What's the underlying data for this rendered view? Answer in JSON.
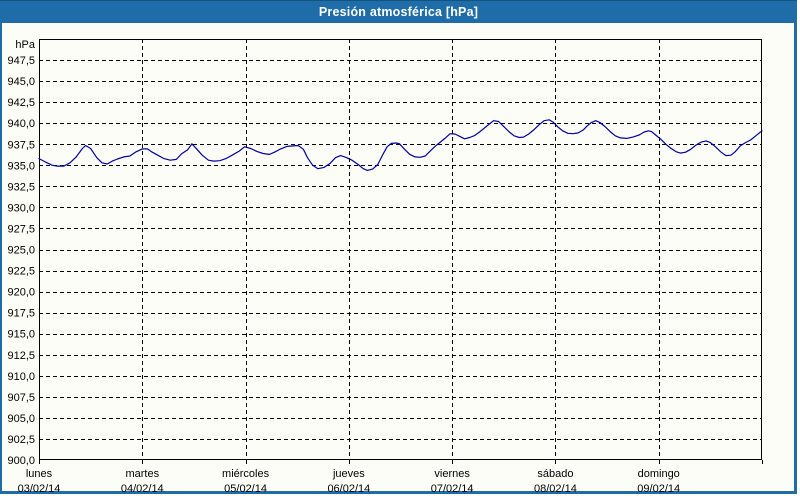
{
  "window": {
    "title": "Presión atmosférica [hPa]"
  },
  "colors": {
    "titlebar_bg": "#1E6CA8",
    "titlebar_text": "#FFFFFF",
    "frame": "#1E6CA8",
    "content_bg": "#FDFDF8",
    "grid": "#000000",
    "axis_text": "#000000",
    "line": "#0000A2"
  },
  "chart_data": {
    "type": "line",
    "title": "Presión atmosférica [hPa]",
    "unit_label": "hPa",
    "grid": "on",
    "legend": "none",
    "y_axis": {
      "min": 900.0,
      "max": 950.0,
      "tick_step": 2.5,
      "tick_labels": [
        "947,5",
        "945,0",
        "942,5",
        "940,0",
        "937,5",
        "935,0",
        "932,5",
        "930,0",
        "927,5",
        "925,0",
        "922,5",
        "920,0",
        "917,5",
        "915,0",
        "912,5",
        "910,0",
        "907,5",
        "905,0",
        "902,5",
        "900,0"
      ]
    },
    "x_axis": {
      "range_days": 7,
      "days": [
        {
          "name": "lunes",
          "date": "03/02/14"
        },
        {
          "name": "martes",
          "date": "04/02/14"
        },
        {
          "name": "miércoles",
          "date": "05/02/14"
        },
        {
          "name": "jueves",
          "date": "06/02/14"
        },
        {
          "name": "viernes",
          "date": "07/02/14"
        },
        {
          "name": "sábado",
          "date": "08/02/14"
        },
        {
          "name": "domingo",
          "date": "09/02/14"
        }
      ]
    },
    "series": [
      {
        "name": "Presión atmosférica",
        "color": "#0000A2",
        "points": [
          [
            0.0,
            935.8
          ],
          [
            0.06,
            935.4
          ],
          [
            0.13,
            935.0
          ],
          [
            0.18,
            934.9
          ],
          [
            0.24,
            934.9
          ],
          [
            0.3,
            935.3
          ],
          [
            0.36,
            936.0
          ],
          [
            0.42,
            937.0
          ],
          [
            0.45,
            937.35
          ],
          [
            0.5,
            937.0
          ],
          [
            0.56,
            935.9
          ],
          [
            0.61,
            935.3
          ],
          [
            0.66,
            935.15
          ],
          [
            0.71,
            935.5
          ],
          [
            0.76,
            935.75
          ],
          [
            0.82,
            936.0
          ],
          [
            0.88,
            936.1
          ],
          [
            0.94,
            936.6
          ],
          [
            1.0,
            936.95
          ],
          [
            1.05,
            936.95
          ],
          [
            1.09,
            936.6
          ],
          [
            1.15,
            936.2
          ],
          [
            1.21,
            935.8
          ],
          [
            1.27,
            935.6
          ],
          [
            1.33,
            935.7
          ],
          [
            1.38,
            936.35
          ],
          [
            1.44,
            936.85
          ],
          [
            1.48,
            937.55
          ],
          [
            1.53,
            936.9
          ],
          [
            1.58,
            936.2
          ],
          [
            1.64,
            935.6
          ],
          [
            1.69,
            935.5
          ],
          [
            1.75,
            935.55
          ],
          [
            1.81,
            935.8
          ],
          [
            1.87,
            936.2
          ],
          [
            1.94,
            936.7
          ],
          [
            1.99,
            937.2
          ],
          [
            2.05,
            937.0
          ],
          [
            2.11,
            936.65
          ],
          [
            2.17,
            936.4
          ],
          [
            2.23,
            936.3
          ],
          [
            2.28,
            936.55
          ],
          [
            2.34,
            936.95
          ],
          [
            2.4,
            937.25
          ],
          [
            2.46,
            937.3
          ],
          [
            2.51,
            937.35
          ],
          [
            2.56,
            936.9
          ],
          [
            2.6,
            935.9
          ],
          [
            2.65,
            935.0
          ],
          [
            2.7,
            934.6
          ],
          [
            2.76,
            934.75
          ],
          [
            2.82,
            935.25
          ],
          [
            2.87,
            935.9
          ],
          [
            2.92,
            936.15
          ],
          [
            2.97,
            935.95
          ],
          [
            3.03,
            935.6
          ],
          [
            3.09,
            935.1
          ],
          [
            3.14,
            934.6
          ],
          [
            3.18,
            934.4
          ],
          [
            3.23,
            934.55
          ],
          [
            3.28,
            935.1
          ],
          [
            3.33,
            936.3
          ],
          [
            3.37,
            937.2
          ],
          [
            3.41,
            937.6
          ],
          [
            3.46,
            937.65
          ],
          [
            3.49,
            937.55
          ],
          [
            3.54,
            936.9
          ],
          [
            3.59,
            936.3
          ],
          [
            3.64,
            936.0
          ],
          [
            3.69,
            935.95
          ],
          [
            3.74,
            936.1
          ],
          [
            3.78,
            936.6
          ],
          [
            3.83,
            937.2
          ],
          [
            3.88,
            937.7
          ],
          [
            3.93,
            938.2
          ],
          [
            3.98,
            938.75
          ],
          [
            4.03,
            938.7
          ],
          [
            4.08,
            938.4
          ],
          [
            4.12,
            938.15
          ],
          [
            4.17,
            938.3
          ],
          [
            4.22,
            938.55
          ],
          [
            4.27,
            939.0
          ],
          [
            4.32,
            939.5
          ],
          [
            4.37,
            940.0
          ],
          [
            4.4,
            940.3
          ],
          [
            4.45,
            940.2
          ],
          [
            4.5,
            939.6
          ],
          [
            4.55,
            939.0
          ],
          [
            4.6,
            938.5
          ],
          [
            4.65,
            938.3
          ],
          [
            4.69,
            938.35
          ],
          [
            4.74,
            938.7
          ],
          [
            4.79,
            939.2
          ],
          [
            4.84,
            939.8
          ],
          [
            4.89,
            940.3
          ],
          [
            4.94,
            940.4
          ],
          [
            4.98,
            940.1
          ],
          [
            5.02,
            939.6
          ],
          [
            5.07,
            939.1
          ],
          [
            5.12,
            938.8
          ],
          [
            5.17,
            938.75
          ],
          [
            5.22,
            938.85
          ],
          [
            5.27,
            939.2
          ],
          [
            5.31,
            939.7
          ],
          [
            5.35,
            940.1
          ],
          [
            5.39,
            940.3
          ],
          [
            5.43,
            940.1
          ],
          [
            5.48,
            939.6
          ],
          [
            5.53,
            939.0
          ],
          [
            5.58,
            938.5
          ],
          [
            5.63,
            938.25
          ],
          [
            5.69,
            938.2
          ],
          [
            5.75,
            938.35
          ],
          [
            5.81,
            938.6
          ],
          [
            5.86,
            938.95
          ],
          [
            5.9,
            939.1
          ],
          [
            5.93,
            939.0
          ],
          [
            5.97,
            938.6
          ],
          [
            6.02,
            938.1
          ],
          [
            6.07,
            937.5
          ],
          [
            6.12,
            937.0
          ],
          [
            6.17,
            936.6
          ],
          [
            6.21,
            936.45
          ],
          [
            6.26,
            936.55
          ],
          [
            6.31,
            936.9
          ],
          [
            6.36,
            937.4
          ],
          [
            6.41,
            937.75
          ],
          [
            6.46,
            937.9
          ],
          [
            6.5,
            937.7
          ],
          [
            6.55,
            937.2
          ],
          [
            6.6,
            936.6
          ],
          [
            6.65,
            936.15
          ],
          [
            6.7,
            936.2
          ],
          [
            6.74,
            936.6
          ],
          [
            6.79,
            937.3
          ],
          [
            6.84,
            937.7
          ],
          [
            6.89,
            938.0
          ],
          [
            6.94,
            938.5
          ],
          [
            7.0,
            939.1
          ]
        ]
      }
    ]
  }
}
